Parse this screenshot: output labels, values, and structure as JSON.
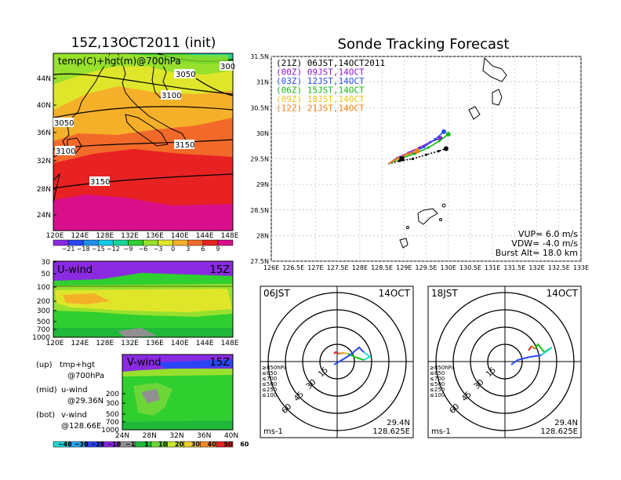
{
  "titles": {
    "left": "15Z,13OCT2011 (init)",
    "right": "Sonde Tracking Forecast"
  },
  "colors": {
    "purple": "#7a1fd6",
    "blue": "#2a4cf0",
    "green": "#16c416",
    "yellow": "#d8c020",
    "orange": "#f07f1a",
    "red": "#e02424",
    "magenta": "#e0107a",
    "cyan": "#20d8c8"
  },
  "temp_map": {
    "title": "temp(C)+hgt(m)@700hPa",
    "x_ticks": [
      "120E",
      "124E",
      "128E",
      "132E",
      "136E",
      "140E",
      "144E",
      "148E"
    ],
    "y_ticks": [
      "44N",
      "40N",
      "36N",
      "32N",
      "28N",
      "24N"
    ],
    "contour_labels": [
      "3050",
      "3100",
      "3150",
      "3050",
      "3100",
      "3150",
      "300"
    ],
    "colorbar_ticks": [
      "−21",
      "−18",
      "−15",
      "−12",
      "−9",
      "−6",
      "−3",
      "0",
      "3",
      "6",
      "9"
    ],
    "colorbar_colors": [
      "#8a2be2",
      "#2b45f5",
      "#1f8ff0",
      "#12c8e6",
      "#17d49a",
      "#2fcf2f",
      "#98e02e",
      "#dfe62a",
      "#f5b02a",
      "#f26a2a",
      "#e82222",
      "#d90f8a"
    ]
  },
  "uwind": {
    "title": "U-wind",
    "time": "15Z",
    "y_ticks": [
      "30",
      "50",
      "100",
      "200",
      "300",
      "500",
      "700",
      "1000"
    ],
    "x_ticks": [
      "120E",
      "124E",
      "128E",
      "132E",
      "136E",
      "140E",
      "144E",
      "148E"
    ]
  },
  "vwind": {
    "title": "V-wind",
    "time": "15Z",
    "y_ticks": [
      "200",
      "300",
      "500",
      "700",
      "1000"
    ],
    "x_ticks": [
      "24N",
      "28N",
      "32N",
      "36N",
      "40N"
    ]
  },
  "wind_colorbar": {
    "ticks": [
      "−40",
      "−30",
      "−20",
      "−10",
      "−1",
      "1",
      "10",
      "20",
      "30",
      "40",
      "50",
      "60"
    ],
    "colors": [
      "#1fd6d6",
      "#2aa8f0",
      "#2b45f5",
      "#8a2be2",
      "#909090",
      "#1fb83a",
      "#6cd638",
      "#c8e630",
      "#efd02a",
      "#f28a2a",
      "#e82222"
    ]
  },
  "legend_text": [
    {
      "k": "(up)",
      "v1": "tmp+hgt",
      "v2": "@700hPa"
    },
    {
      "k": "(mid)",
      "v1": "u-wind",
      "v2": "@29.36N"
    },
    {
      "k": "(bot)",
      "v1": "v-wind",
      "v2": "@128.66E"
    }
  ],
  "track_legend": [
    {
      "label": "(21Z)  06JST,14OCT2011",
      "color": "#000000"
    },
    {
      "label": "(00Z)  09JST,14OCT",
      "color": "#8a18c8"
    },
    {
      "label": "(03Z)  12JST,14OCT",
      "color": "#2a4cf0"
    },
    {
      "label": "(06Z)  15JST,14OCT",
      "color": "#16b816"
    },
    {
      "label": "(09Z)  18JST,14OCT",
      "color": "#e8c020"
    },
    {
      "label": "(12Z)  21JST,14OCT",
      "color": "#f07f1a"
    }
  ],
  "track_params": {
    "vup": "VUP= 6.0 m/s",
    "vdw": "VDW= -4.0 m/s",
    "burst": "Burst Alt= 18.0 km"
  },
  "chart_data": {
    "type": "line",
    "title": "Sonde Tracking Forecast",
    "x_ticks": [
      "126E",
      "126.5E",
      "127E",
      "127.5E",
      "128E",
      "128.5E",
      "129E",
      "129.5E",
      "130E",
      "130.5E",
      "131E",
      "131.5E",
      "132E",
      "132.5E",
      "133E"
    ],
    "y_ticks": [
      "31.5N",
      "31N",
      "30.5N",
      "30N",
      "29.5N",
      "29N",
      "28.5N",
      "28N",
      "27.5N"
    ],
    "xlim": [
      126,
      133
    ],
    "ylim": [
      27.5,
      31.5
    ],
    "grid": true,
    "series": [
      {
        "name": "(21Z)  06JST,14OCT2011",
        "color": "#000000",
        "x": [
          128.64,
          128.9,
          129.2,
          129.5,
          129.78,
          129.95
        ],
        "y": [
          29.4,
          29.46,
          29.5,
          29.58,
          29.65,
          29.7
        ]
      },
      {
        "name": "(00Z)  09JST,14OCT",
        "color": "#8a18c8",
        "x": [
          128.64,
          128.85,
          129.1,
          129.35,
          129.6,
          129.82
        ],
        "y": [
          29.4,
          29.52,
          29.62,
          29.72,
          29.83,
          29.9
        ]
      },
      {
        "name": "(03Z)  12JST,14OCT",
        "color": "#2a4cf0",
        "x": [
          128.64,
          128.9,
          129.2,
          129.45,
          129.7,
          129.9
        ],
        "y": [
          29.4,
          29.53,
          29.62,
          29.73,
          29.88,
          30.03
        ]
      },
      {
        "name": "(06Z)  15JST,14OCT",
        "color": "#16b816",
        "x": [
          128.64,
          128.95,
          129.25,
          129.55,
          129.8,
          130.0
        ],
        "y": [
          29.4,
          29.52,
          29.6,
          29.72,
          29.85,
          29.98
        ]
      },
      {
        "name": "(09Z)  18JST,14OCT",
        "color": "#e8c020",
        "x": [
          128.64,
          128.85,
          129.05,
          129.3
        ],
        "y": [
          29.4,
          29.5,
          29.58,
          29.66
        ]
      },
      {
        "name": "(12Z)  21JST,14OCT",
        "color": "#f07f1a",
        "x": [
          128.64,
          128.88,
          129.1,
          129.3
        ],
        "y": [
          29.4,
          29.52,
          29.6,
          29.65
        ]
      }
    ]
  },
  "hodo1": {
    "title": "06JST",
    "date": "14OCT",
    "rings": [
      "15",
      "30",
      "45",
      "60"
    ],
    "levels": [
      "≥850hPa",
      "≤850",
      "≤700",
      "≤500",
      "≤250",
      "≤100"
    ],
    "unit": "ms-1",
    "lat": "29.4N",
    "lon": "128.625E"
  },
  "hodo2": {
    "title": "18JST",
    "date": "14OCT",
    "rings": [
      "15",
      "30",
      "45",
      "60"
    ],
    "levels": [
      "≥850hPa",
      "≤850",
      "≤700",
      "≤500",
      "≤250",
      "≤100"
    ],
    "unit": "ms-1",
    "lat": "29.4N",
    "lon": "128.625E"
  }
}
